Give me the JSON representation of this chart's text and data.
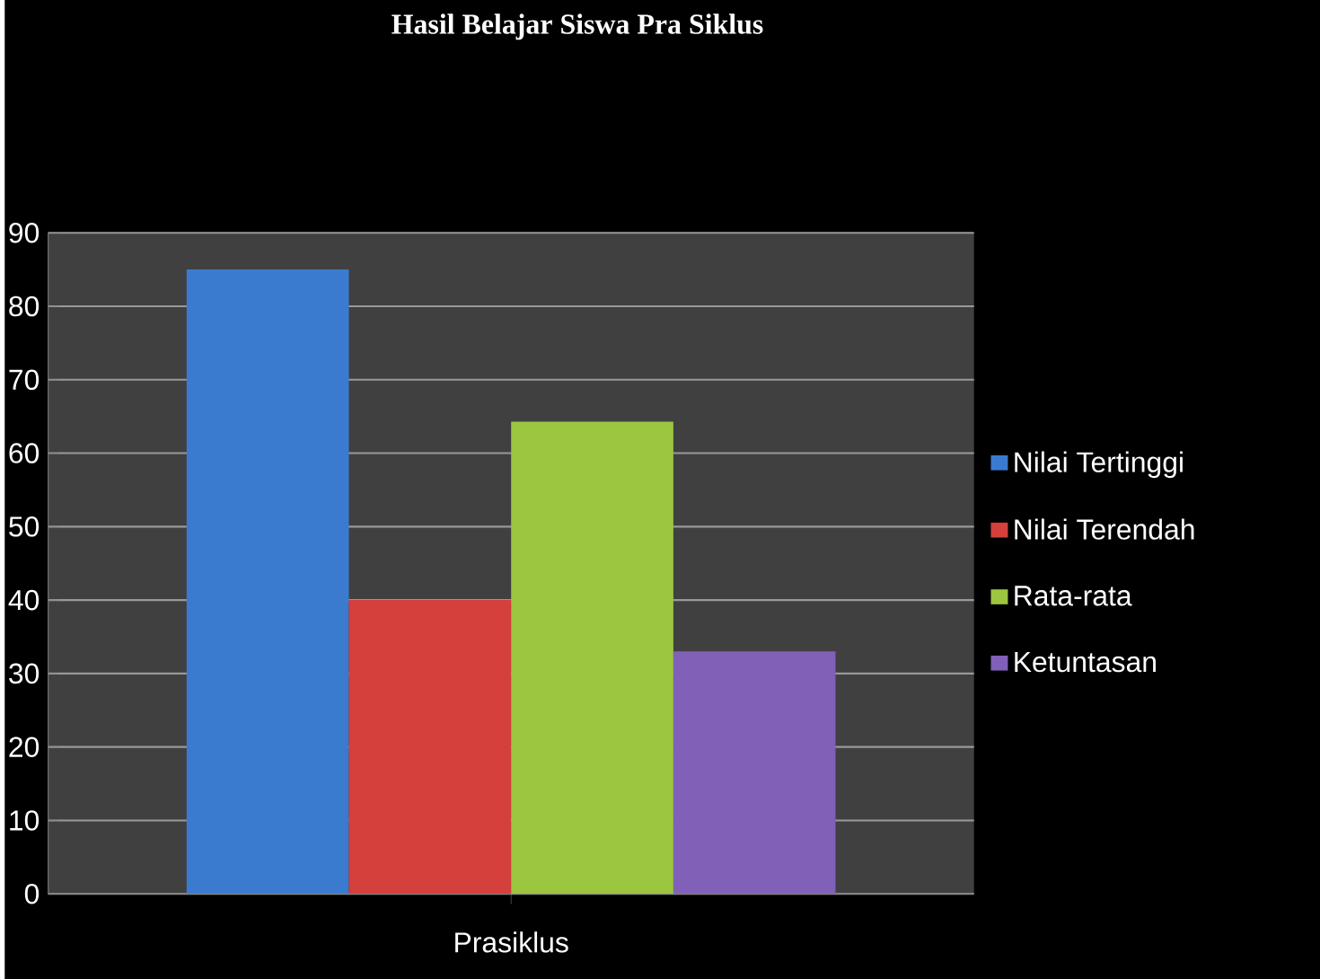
{
  "chart_data": {
    "type": "bar",
    "title": "Hasil Belajar Siswa Pra Siklus",
    "categories": [
      "Prasiklus"
    ],
    "series": [
      {
        "name": "Nilai Tertinggi",
        "color": "#3a7bcf",
        "values": [
          85
        ]
      },
      {
        "name": "Nilai Terendah",
        "color": "#d5403c",
        "values": [
          40
        ]
      },
      {
        "name": "Rata-rata",
        "color": "#9cc640",
        "values": [
          64.3
        ]
      },
      {
        "name": "Ketuntasan",
        "color": "#8160b8",
        "values": [
          33
        ]
      }
    ],
    "ylim": [
      0,
      90
    ],
    "yticks": [
      0,
      10,
      20,
      30,
      40,
      50,
      60,
      70,
      80,
      90
    ],
    "grid": "y",
    "legend": "right"
  }
}
